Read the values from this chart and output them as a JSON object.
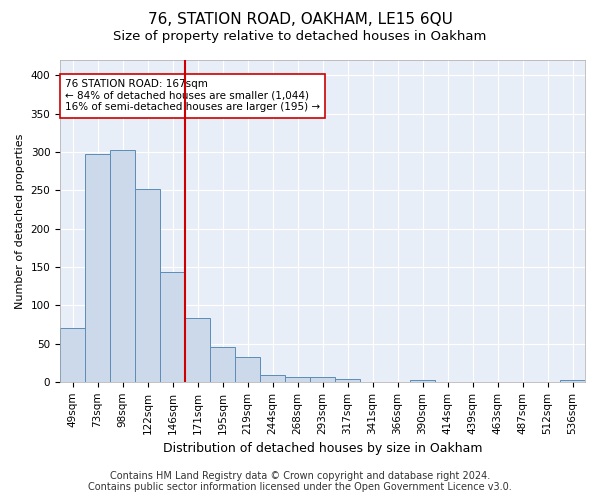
{
  "title": "76, STATION ROAD, OAKHAM, LE15 6QU",
  "subtitle": "Size of property relative to detached houses in Oakham",
  "xlabel": "Distribution of detached houses by size in Oakham",
  "ylabel": "Number of detached properties",
  "categories": [
    "49sqm",
    "73sqm",
    "98sqm",
    "122sqm",
    "146sqm",
    "171sqm",
    "195sqm",
    "219sqm",
    "244sqm",
    "268sqm",
    "293sqm",
    "317sqm",
    "341sqm",
    "366sqm",
    "390sqm",
    "414sqm",
    "439sqm",
    "463sqm",
    "487sqm",
    "512sqm",
    "536sqm"
  ],
  "values": [
    70,
    297,
    302,
    251,
    143,
    83,
    45,
    33,
    9,
    6,
    6,
    4,
    0,
    0,
    3,
    0,
    0,
    0,
    0,
    0,
    2
  ],
  "bar_color": "#ccd9ea",
  "bar_edge_color": "#5b8db8",
  "vline_color": "#cc0000",
  "annotation_text": "76 STATION ROAD: 167sqm\n← 84% of detached houses are smaller (1,044)\n16% of semi-detached houses are larger (195) →",
  "annotation_box_facecolor": "#ffffff",
  "annotation_box_edgecolor": "#cc0000",
  "ylim": [
    0,
    420
  ],
  "yticks": [
    0,
    50,
    100,
    150,
    200,
    250,
    300,
    350,
    400
  ],
  "footer_line1": "Contains HM Land Registry data © Crown copyright and database right 2024.",
  "footer_line2": "Contains public sector information licensed under the Open Government Licence v3.0.",
  "plot_bg_color": "#e8eef7",
  "fig_bg_color": "#ffffff",
  "grid_color": "#ffffff",
  "title_fontsize": 11,
  "subtitle_fontsize": 9.5,
  "xlabel_fontsize": 9,
  "ylabel_fontsize": 8,
  "tick_fontsize": 7.5,
  "annot_fontsize": 7.5,
  "footer_fontsize": 7
}
